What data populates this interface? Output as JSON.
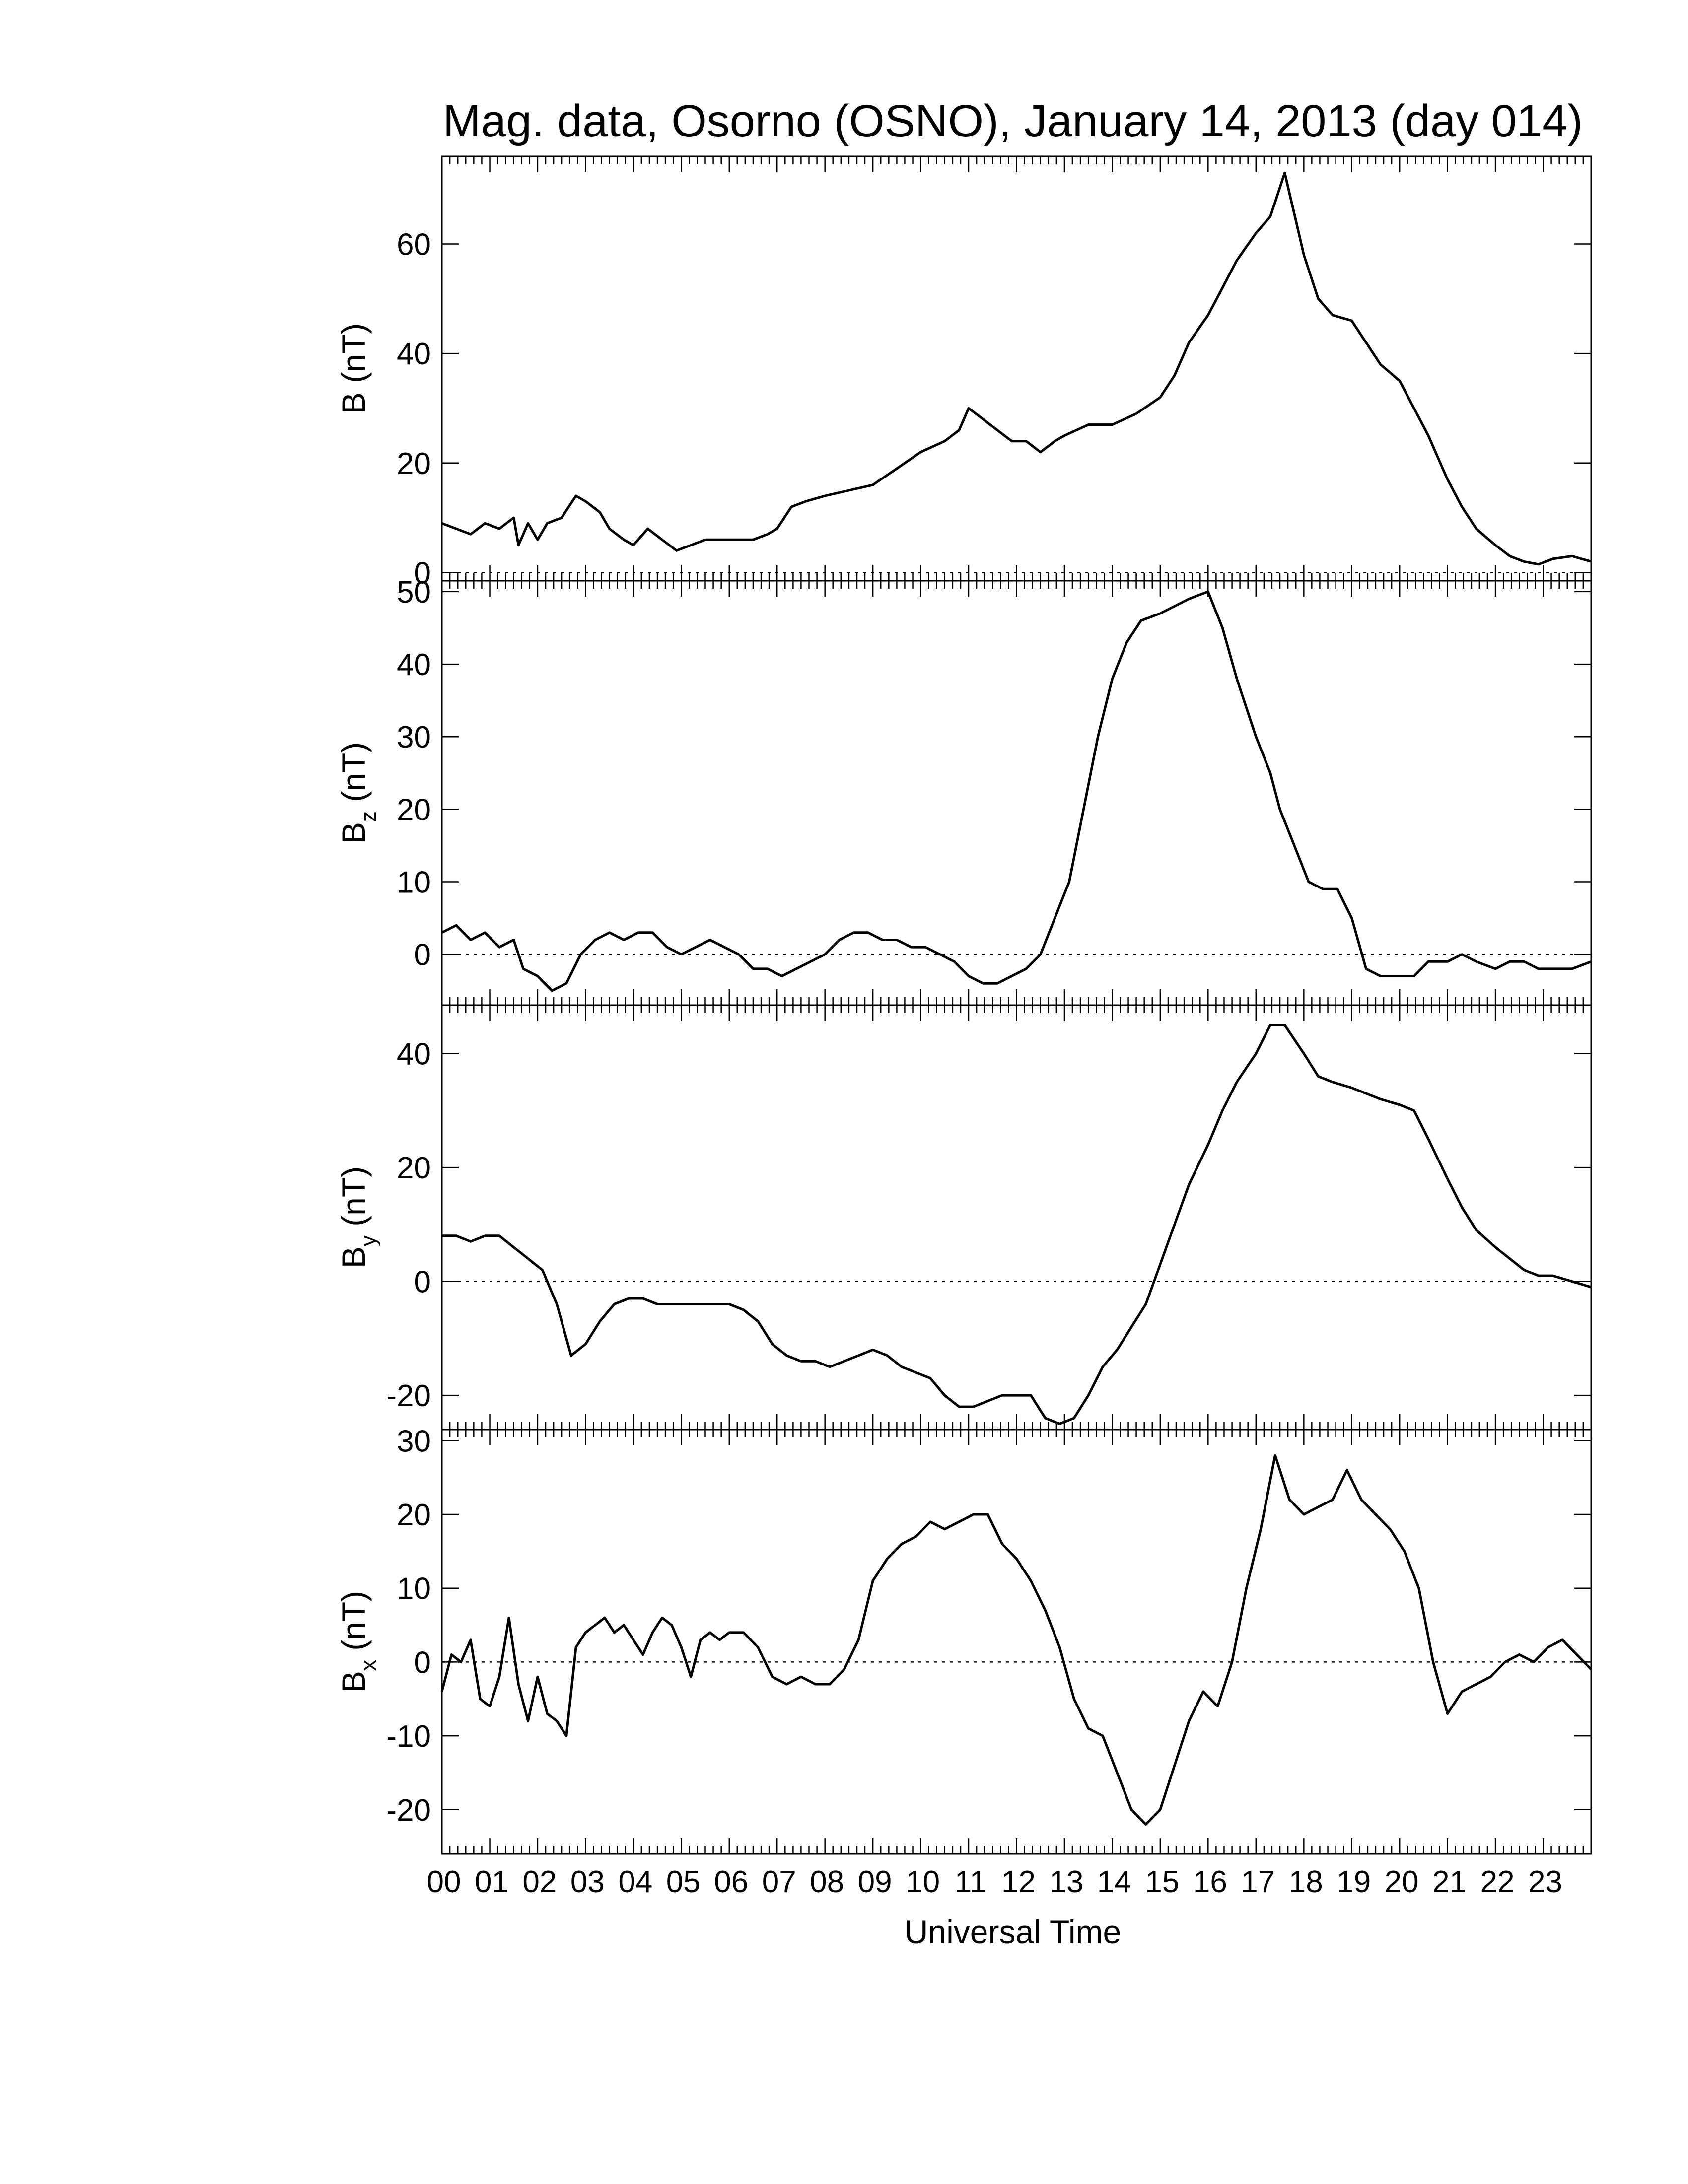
{
  "chart_data": {
    "type": "line",
    "title": "Mag. data, Osorno (OSNO), January 14, 2013 (day 014)",
    "xlabel": "Universal Time",
    "x_unit": "hour",
    "xlim": [
      0,
      24
    ],
    "x_tick_labels": [
      "00",
      "01",
      "02",
      "03",
      "04",
      "05",
      "06",
      "07",
      "08",
      "09",
      "10",
      "11",
      "12",
      "13",
      "14",
      "15",
      "16",
      "17",
      "18",
      "19",
      "20",
      "21",
      "22",
      "23"
    ],
    "panels": [
      {
        "ylabel_main": "B",
        "ylabel_sub": "",
        "ylabel_unit": "(nT)",
        "ylim": [
          -1.5,
          76
        ],
        "yticks": [
          0,
          20,
          40,
          60
        ],
        "zero_line": true,
        "x": [
          0,
          0.3,
          0.6,
          0.9,
          1.2,
          1.5,
          1.6,
          1.8,
          2.0,
          2.2,
          2.5,
          2.8,
          3.0,
          3.3,
          3.5,
          3.8,
          4.0,
          4.3,
          4.6,
          4.9,
          5.2,
          5.5,
          6.0,
          6.5,
          6.8,
          7.0,
          7.3,
          7.6,
          8.0,
          8.5,
          9.0,
          9.5,
          10.0,
          10.5,
          10.8,
          11.0,
          11.3,
          11.6,
          11.9,
          12.2,
          12.5,
          12.8,
          13.0,
          13.5,
          14.0,
          14.5,
          15.0,
          15.3,
          15.6,
          16.0,
          16.3,
          16.6,
          17.0,
          17.3,
          17.6,
          18.0,
          18.3,
          18.6,
          19.0,
          19.3,
          19.6,
          20.0,
          20.3,
          20.6,
          21.0,
          21.3,
          21.6,
          22.0,
          22.3,
          22.6,
          22.9,
          23.2,
          23.6,
          24.0
        ],
        "values": [
          9,
          8,
          7,
          9,
          8,
          10,
          5,
          9,
          6,
          9,
          10,
          14,
          13,
          11,
          8,
          6,
          5,
          8,
          6,
          4,
          5,
          6,
          6,
          6,
          7,
          8,
          12,
          13,
          14,
          15,
          16,
          19,
          22,
          24,
          26,
          30,
          28,
          26,
          24,
          24,
          22,
          24,
          25,
          27,
          27,
          29,
          32,
          36,
          42,
          47,
          52,
          57,
          62,
          65,
          73,
          58,
          50,
          47,
          46,
          42,
          38,
          35,
          30,
          25,
          17,
          12,
          8,
          5,
          3,
          2,
          1.5,
          2.5,
          3,
          2
        ]
      },
      {
        "ylabel_main": "B",
        "ylabel_sub": "z",
        "ylabel_unit": "(nT)",
        "ylim": [
          -7,
          51.5
        ],
        "yticks": [
          0,
          10,
          20,
          30,
          40,
          50
        ],
        "zero_line": true,
        "x": [
          0,
          0.3,
          0.6,
          0.9,
          1.2,
          1.5,
          1.7,
          2.0,
          2.3,
          2.6,
          2.9,
          3.2,
          3.5,
          3.8,
          4.1,
          4.4,
          4.7,
          5.0,
          5.3,
          5.6,
          5.9,
          6.2,
          6.5,
          6.8,
          7.1,
          7.4,
          7.7,
          8.0,
          8.3,
          8.6,
          8.9,
          9.2,
          9.5,
          9.8,
          10.1,
          10.4,
          10.7,
          11.0,
          11.3,
          11.6,
          11.9,
          12.2,
          12.5,
          12.8,
          13.1,
          13.4,
          13.7,
          14.0,
          14.3,
          14.6,
          15.0,
          15.3,
          15.6,
          16.0,
          16.3,
          16.6,
          17.0,
          17.3,
          17.5,
          17.8,
          18.1,
          18.4,
          18.7,
          19.0,
          19.3,
          19.6,
          20.0,
          20.3,
          20.6,
          21.0,
          21.3,
          21.6,
          22.0,
          22.3,
          22.6,
          22.9,
          23.2,
          23.6,
          24.0
        ],
        "values": [
          3,
          4,
          2,
          3,
          1,
          2,
          -2,
          -3,
          -5,
          -4,
          0,
          2,
          3,
          2,
          3,
          3,
          1,
          0,
          1,
          2,
          1,
          0,
          -2,
          -2,
          -3,
          -2,
          -1,
          0,
          2,
          3,
          3,
          2,
          2,
          1,
          1,
          0,
          -1,
          -3,
          -4,
          -4,
          -3,
          -2,
          0,
          5,
          10,
          20,
          30,
          38,
          43,
          46,
          47,
          48,
          49,
          50,
          45,
          38,
          30,
          25,
          20,
          15,
          10,
          9,
          9,
          5,
          -2,
          -3,
          -3,
          -3,
          -1,
          -1,
          0,
          -1,
          -2,
          -1,
          -1,
          -2,
          -2,
          -2,
          -1
        ]
      },
      {
        "ylabel_main": "B",
        "ylabel_sub": "y",
        "ylabel_unit": "(nT)",
        "ylim": [
          -26,
          48.5
        ],
        "yticks": [
          -20,
          0,
          20,
          40
        ],
        "zero_line": true,
        "x": [
          0,
          0.3,
          0.6,
          0.9,
          1.2,
          1.5,
          1.8,
          2.1,
          2.4,
          2.7,
          3.0,
          3.3,
          3.6,
          3.9,
          4.2,
          4.5,
          4.8,
          5.1,
          5.4,
          5.7,
          6.0,
          6.3,
          6.6,
          6.9,
          7.2,
          7.5,
          7.8,
          8.1,
          8.4,
          8.7,
          9.0,
          9.3,
          9.6,
          9.9,
          10.2,
          10.5,
          10.8,
          11.1,
          11.4,
          11.7,
          12.0,
          12.3,
          12.6,
          12.9,
          13.2,
          13.5,
          13.8,
          14.1,
          14.4,
          14.7,
          15.0,
          15.3,
          15.6,
          16.0,
          16.3,
          16.6,
          17.0,
          17.3,
          17.6,
          18.0,
          18.3,
          18.6,
          19.0,
          19.3,
          19.6,
          20.0,
          20.3,
          20.6,
          21.0,
          21.3,
          21.6,
          22.0,
          22.3,
          22.6,
          22.9,
          23.2,
          23.6,
          24.0
        ],
        "values": [
          8,
          8,
          7,
          8,
          8,
          6,
          4,
          2,
          -4,
          -13,
          -11,
          -7,
          -4,
          -3,
          -3,
          -4,
          -4,
          -4,
          -4,
          -4,
          -4,
          -5,
          -7,
          -11,
          -13,
          -14,
          -14,
          -15,
          -14,
          -13,
          -12,
          -13,
          -15,
          -16,
          -17,
          -20,
          -22,
          -22,
          -21,
          -20,
          -20,
          -20,
          -24,
          -25,
          -24,
          -20,
          -15,
          -12,
          -8,
          -4,
          3,
          10,
          17,
          24,
          30,
          35,
          40,
          45,
          45,
          40,
          36,
          35,
          34,
          33,
          32,
          31,
          30,
          25,
          18,
          13,
          9,
          6,
          4,
          2,
          1,
          1,
          0,
          -1
        ]
      },
      {
        "ylabel_main": "B",
        "ylabel_sub": "x",
        "ylabel_unit": "(nT)",
        "ylim": [
          -26,
          31.5
        ],
        "yticks": [
          -20,
          -10,
          0,
          10,
          20,
          30
        ],
        "zero_line": true,
        "x": [
          0,
          0.2,
          0.4,
          0.6,
          0.8,
          1.0,
          1.2,
          1.4,
          1.6,
          1.8,
          2.0,
          2.2,
          2.4,
          2.6,
          2.8,
          3.0,
          3.2,
          3.4,
          3.6,
          3.8,
          4.0,
          4.2,
          4.4,
          4.6,
          4.8,
          5.0,
          5.2,
          5.4,
          5.6,
          5.8,
          6.0,
          6.3,
          6.6,
          6.9,
          7.2,
          7.5,
          7.8,
          8.1,
          8.4,
          8.7,
          9.0,
          9.3,
          9.6,
          9.9,
          10.2,
          10.5,
          10.8,
          11.1,
          11.4,
          11.7,
          12.0,
          12.3,
          12.6,
          12.9,
          13.2,
          13.5,
          13.8,
          14.1,
          14.4,
          14.7,
          15.0,
          15.3,
          15.6,
          15.9,
          16.2,
          16.5,
          16.8,
          17.1,
          17.4,
          17.7,
          18.0,
          18.3,
          18.6,
          18.9,
          19.2,
          19.5,
          19.8,
          20.1,
          20.4,
          20.7,
          21.0,
          21.3,
          21.6,
          21.9,
          22.2,
          22.5,
          22.8,
          23.1,
          23.4,
          23.7,
          24.0
        ],
        "values": [
          -4,
          1,
          0,
          3,
          -5,
          -6,
          -2,
          6,
          -3,
          -8,
          -2,
          -7,
          -8,
          -10,
          2,
          4,
          5,
          6,
          4,
          5,
          3,
          1,
          4,
          6,
          5,
          2,
          -2,
          3,
          4,
          3,
          4,
          4,
          2,
          -2,
          -3,
          -2,
          -3,
          -3,
          -1,
          3,
          11,
          14,
          16,
          17,
          19,
          18,
          19,
          20,
          20,
          16,
          14,
          11,
          7,
          2,
          -5,
          -9,
          -10,
          -15,
          -20,
          -22,
          -20,
          -14,
          -8,
          -4,
          -6,
          0,
          10,
          18,
          28,
          22,
          20,
          21,
          22,
          26,
          22,
          20,
          18,
          15,
          10,
          0,
          -7,
          -4,
          -3,
          -2,
          0,
          1,
          0,
          2,
          3,
          1,
          -1
        ]
      }
    ],
    "grid": false,
    "legend": "none"
  }
}
